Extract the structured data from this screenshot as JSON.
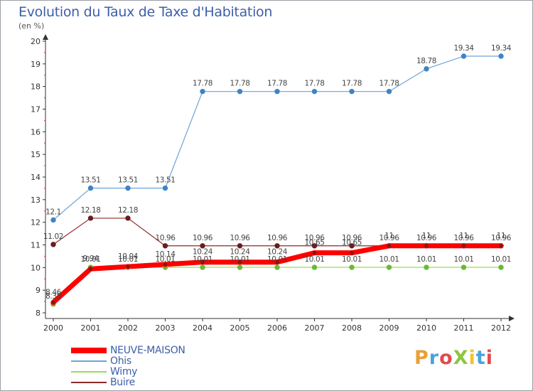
{
  "title": "Evolution du Taux de Taxe d'Habitation",
  "subtitle": "(en %)",
  "logo": {
    "text": "ProXiti",
    "colors": [
      "#e8a13a",
      "#4aa3df",
      "#e24b4b",
      "#8cc63f",
      "#f2c230",
      "#4aa3df",
      "#e24b4b"
    ]
  },
  "chart_data": {
    "type": "line",
    "x": [
      "2000",
      "2001",
      "2002",
      "2003",
      "2004",
      "2005",
      "2006",
      "2007",
      "2008",
      "2009",
      "2010",
      "2011",
      "2012"
    ],
    "ylim": [
      8,
      20
    ],
    "yticks": [
      "8",
      "9",
      "10",
      "11",
      "12",
      "13",
      "14",
      "15",
      "16",
      "17",
      "18",
      "19",
      "20"
    ],
    "grid": false,
    "legend_position": "bottom-left",
    "series": [
      {
        "name": "NEUVE-MAISON",
        "color": "#ff0000",
        "width": 5,
        "values": [
          8.46,
          9.94,
          10.04,
          10.14,
          10.24,
          10.24,
          10.24,
          10.65,
          10.65,
          10.96,
          10.96,
          10.96,
          10.96
        ],
        "labels": [
          "8.46",
          "9.94",
          "10.04",
          "10.14",
          "10.24",
          "10.24",
          "10.24",
          "10.65",
          "10.65",
          "11",
          "11",
          "11",
          "11"
        ]
      },
      {
        "name": "Ohis",
        "color": "#6fa2d8",
        "width": 1,
        "values": [
          12.1,
          13.51,
          13.51,
          13.51,
          17.78,
          17.78,
          17.78,
          17.78,
          17.78,
          17.78,
          18.78,
          19.34,
          19.34
        ],
        "labels": [
          "12.1",
          "13.51",
          "13.51",
          "13.51",
          "17.78",
          "17.78",
          "17.78",
          "17.78",
          "17.78",
          "17.78",
          "18.78",
          "19.34",
          "19.34"
        ]
      },
      {
        "name": "Wimy",
        "color": "#99dd55",
        "width": 1,
        "values": [
          8.38,
          10.01,
          10.01,
          10.01,
          10.01,
          10.01,
          10.01,
          10.01,
          10.01,
          10.01,
          10.01,
          10.01,
          10.01
        ],
        "labels": [
          "8.38",
          "10.01",
          "10.01",
          "10.01",
          "10.01",
          "10.01",
          "10.01",
          "10.01",
          "10.01",
          "10.01",
          "10.01",
          "10.01",
          "10.01"
        ]
      },
      {
        "name": "Buire",
        "color": "#8b2a2a",
        "width": 1,
        "values": [
          11.02,
          12.18,
          12.18,
          10.96,
          10.96,
          10.96,
          10.96,
          10.96,
          10.96,
          10.96,
          10.96,
          10.96,
          10.96
        ],
        "labels": [
          "11.02",
          "12.18",
          "12.18",
          "10.96",
          "10.96",
          "10.96",
          "10.96",
          "10.96",
          "10.96",
          "10.96",
          "10.96",
          "10.96",
          "10.96"
        ]
      }
    ]
  }
}
